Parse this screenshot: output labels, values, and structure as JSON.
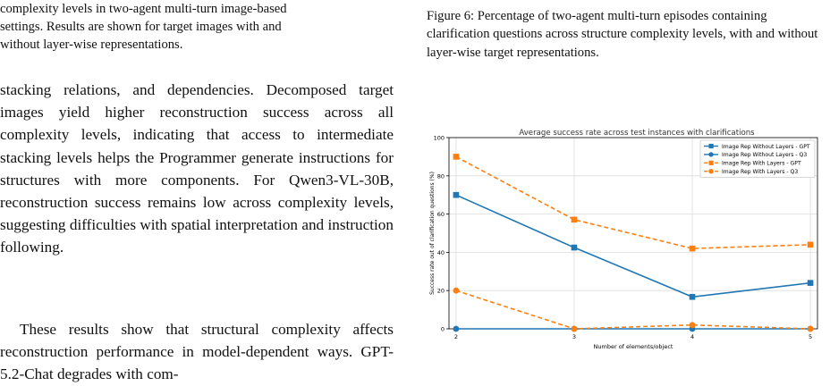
{
  "left_column": {
    "caption_fragment": "complexity levels in two-agent multi-turn image-based\nsettings. Results are shown for target images with and\nwithout layer-wise representations.",
    "paragraph_1": "stacking relations, and dependencies. Decomposed target images yield higher reconstruction success across all complexity levels, indicating that access to intermediate stacking levels helps the Programmer generate instructions for structures with more components. For Qwen3-VL-30B, reconstruction success remains low across complexity levels, suggesting difficulties with spatial interpretation and instruction following.",
    "paragraph_2": "These results show that structural complexity affects reconstruction performance in model-dependent ways. GPT-5.2-Chat degrades with com-"
  },
  "right_column": {
    "figure_caption": "Figure 6: Percentage of two-agent multi-turn episodes containing clarification questions across structure complexity levels, with and without layer-wise target representations."
  },
  "chart_data": {
    "type": "line",
    "title": "Average success rate across test instances with clarifications",
    "xlabel": "Number of elements/object",
    "ylabel": "Success rate out of clarification questions (%)",
    "x": [
      2,
      3,
      4,
      5
    ],
    "xlim": [
      1.94,
      5.06
    ],
    "ylim": [
      0,
      100
    ],
    "yticks": [
      0,
      20,
      40,
      60,
      80,
      100
    ],
    "grid": true,
    "legend_position": "top-right",
    "series": [
      {
        "name": "Image Rep Without Layers - GPT",
        "values": [
          70,
          42.5,
          16.7,
          24
        ],
        "color": "#1f77b4",
        "marker": "square",
        "dash": false
      },
      {
        "name": "Image Rep Without Layers - Q3",
        "values": [
          0,
          0,
          0,
          0
        ],
        "color": "#1f77b4",
        "marker": "circle",
        "dash": false
      },
      {
        "name": "Image Rep With Layers - GPT",
        "values": [
          90,
          57.1,
          42,
          44
        ],
        "color": "#ff7f0e",
        "marker": "square",
        "dash": true
      },
      {
        "name": "Image Rep With Layers - Q3",
        "values": [
          20,
          0,
          2,
          0
        ],
        "color": "#ff7f0e",
        "marker": "circle",
        "dash": true
      }
    ]
  }
}
